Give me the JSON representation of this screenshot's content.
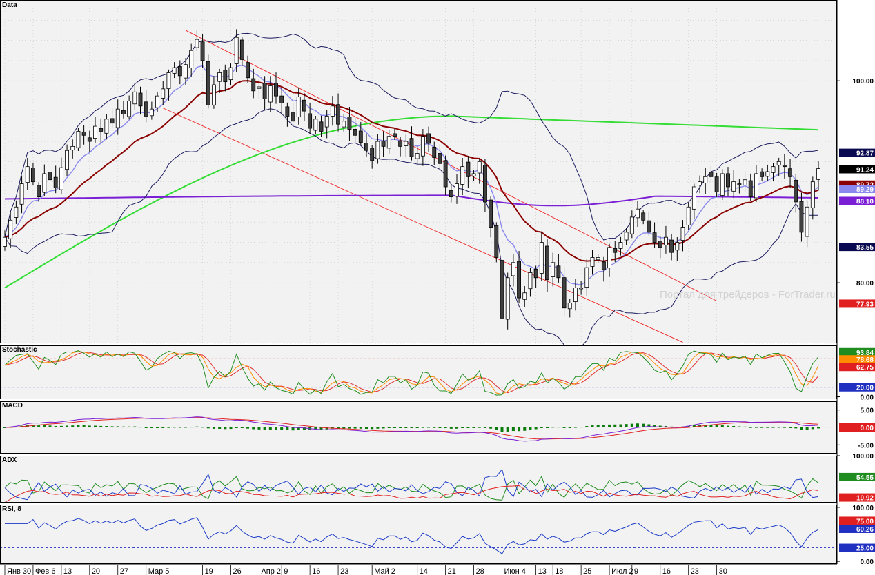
{
  "colors": {
    "panel_bg": "#f2f2f2",
    "axis_bg": "#ffffff",
    "candle_up": "#ffffff",
    "candle_down": "#404040",
    "candle_border": "#000000",
    "bollinger": "#1a1a5e",
    "ma_fast": "#8888ee",
    "ma_mid": "#8b0000",
    "ma_long": "#33dd33",
    "ma_purple": "#7b1fd6",
    "channel": "#ee2222",
    "grid": "#c8c8c8",
    "stoch_k": "#1e8c1e",
    "stoch_d": "#ff8c00",
    "stoch_slow": "#e03030",
    "macd": "#7b1fd6",
    "macd_signal": "#e02020",
    "macd_hist": "#0a7a0a",
    "adx": "#e02020",
    "plus_di": "#1e8c1e",
    "minus_di": "#1a3ac8",
    "rsi": "#1a3ac8",
    "level_red": "#e02020",
    "level_blue": "#2030c0"
  },
  "watermark": "Портал для трейдеров - ForTrader.ru",
  "chart_data": [
    {
      "type": "candlestick",
      "title": "Data",
      "ylim": [
        74,
        108
      ],
      "y_ticks": [
        80.0,
        100.0
      ],
      "y_tick_labels": [
        "80.00",
        "100.00"
      ],
      "grid": true,
      "price_labels": [
        {
          "value": 92.87,
          "text": "92.87",
          "color": "#0a0a50"
        },
        {
          "value": 91.24,
          "text": "91.24",
          "color": "#000000"
        },
        {
          "value": 89.72,
          "text": "89.72",
          "color": "#8b0000"
        },
        {
          "value": 89.29,
          "text": "89.29",
          "color": "#8888ee"
        },
        {
          "value": 88.1,
          "text": "88.10",
          "color": "#7b1fd6"
        },
        {
          "value": 83.55,
          "text": "83.55",
          "color": "#0a0a50"
        },
        {
          "value": 77.93,
          "text": "77.93",
          "color": "#e02020"
        }
      ],
      "closes": [
        84.5,
        86.2,
        87.5,
        89.8,
        91.5,
        90.0,
        88.5,
        90.8,
        90.2,
        89.4,
        91.4,
        93.1,
        93.5,
        95.0,
        94.6,
        94.0,
        95.5,
        95.0,
        96.2,
        95.8,
        97.2,
        96.7,
        98.0,
        98.9,
        97.5,
        96.5,
        97.2,
        98.5,
        99.2,
        100.8,
        101.3,
        100.5,
        101.6,
        103.0,
        104.1,
        102.0,
        97.6,
        99.6,
        100.8,
        99.9,
        101.3,
        104.3,
        102.1,
        100.3,
        99.0,
        99.4,
        98.2,
        99.5,
        98.5,
        97.8,
        96.5,
        96.0,
        98.4,
        97.0,
        95.3,
        96.2,
        95.0,
        96.5,
        97.5,
        95.7,
        96.0,
        95.2,
        94.6,
        93.9,
        93.1,
        92.1,
        94.0,
        93.5,
        94.5,
        94.5,
        93.5,
        94.0,
        92.5,
        92.8,
        94.5,
        93.8,
        92.4,
        91.8,
        89.5,
        88.5,
        89.8,
        91.5,
        90.5,
        90.8,
        92.0,
        88.0,
        85.5,
        82.5,
        76.5,
        80.5,
        82.0,
        78.5,
        79.0,
        81.0,
        80.5,
        84.0,
        80.3,
        82.0,
        80.5,
        77.5,
        78.0,
        79.5,
        79.5,
        81.5,
        82.5,
        82.5,
        81.3,
        83.5,
        83.0,
        84.0,
        85.0,
        86.5,
        87.3,
        86.2,
        85.0,
        84.0,
        83.5,
        84.5,
        83.0,
        84.0,
        85.5,
        87.5,
        89.5,
        90.0,
        90.5,
        90.5,
        89.0,
        90.8,
        89.5,
        90.0,
        89.8,
        90.2,
        88.5,
        90.8,
        90.5,
        91.0,
        91.5,
        92.0,
        91.5,
        90.5,
        88.0,
        85.0,
        87.5,
        90.0,
        91.3
      ]
    },
    {
      "type": "line",
      "title": "Stochastic",
      "ylim": [
        -5,
        108
      ],
      "tick_labels": [
        {
          "value": 93.84,
          "text": "93.84",
          "color": "#1e8c1e"
        },
        {
          "value": 78.68,
          "text": "78.68",
          "color": "#ff8c00"
        },
        {
          "value": 62.75,
          "text": "62.75",
          "color": "#e02020"
        },
        {
          "value": 20.0,
          "text": "20.00",
          "color": "#2030c0"
        },
        {
          "value": 0.0,
          "text": "0.00",
          "color": null
        }
      ],
      "levels": [
        80,
        20
      ]
    },
    {
      "type": "line",
      "title": "MACD",
      "ylim": [
        -7.5,
        7.5
      ],
      "tick_labels": [
        {
          "value": 5.0,
          "text": "5.00",
          "color": null
        },
        {
          "value": 0.0,
          "text": "0.00",
          "color": "#e02020"
        },
        {
          "value": -5.0,
          "text": "-5.00",
          "color": null
        }
      ]
    },
    {
      "type": "line",
      "title": "ADX",
      "ylim": [
        0,
        100
      ],
      "tick_labels": [
        {
          "value": 100.0,
          "text": "100.00",
          "color": null
        },
        {
          "value": 54.55,
          "text": "54.55",
          "color": "#1e8c1e"
        },
        {
          "value": 10.92,
          "text": "10.92",
          "color": "#e02020"
        }
      ]
    },
    {
      "type": "line",
      "title": "RSI, 8",
      "ylim": [
        -5,
        105
      ],
      "tick_labels": [
        {
          "value": 100.0,
          "text": "100.00",
          "color": null
        },
        {
          "value": 75.0,
          "text": "75.00",
          "color": "#e02020"
        },
        {
          "value": 60.26,
          "text": "60.26",
          "color": "#2030c0"
        },
        {
          "value": 25.0,
          "text": "25.00",
          "color": "#2030c0"
        },
        {
          "value": 0.0,
          "text": "0.00",
          "color": null
        }
      ],
      "levels": [
        75,
        25
      ]
    }
  ],
  "x_axis": {
    "labels": [
      {
        "text": "Янв 30",
        "index": 0
      },
      {
        "text": "Фев 6",
        "index": 5
      },
      {
        "text": "13",
        "index": 10
      },
      {
        "text": "20",
        "index": 15
      },
      {
        "text": "27",
        "index": 20
      },
      {
        "text": "Мар 5",
        "index": 25
      },
      {
        "text": "19",
        "index": 35
      },
      {
        "text": "26",
        "index": 40
      },
      {
        "text": "Апр 2",
        "index": 45
      },
      {
        "text": "9",
        "index": 49
      },
      {
        "text": "16",
        "index": 54
      },
      {
        "text": "23",
        "index": 59
      },
      {
        "text": "Май 2",
        "index": 65
      },
      {
        "text": "14",
        "index": 73
      },
      {
        "text": "21",
        "index": 78
      },
      {
        "text": "28",
        "index": 83
      },
      {
        "text": "Июн 4",
        "index": 88
      },
      {
        "text": "13",
        "index": 94
      },
      {
        "text": "18",
        "index": 97
      },
      {
        "text": "25",
        "index": 102
      },
      {
        "text": "Июл 2",
        "index": 107
      },
      {
        "text": "9",
        "index": 111
      },
      {
        "text": "16",
        "index": 116
      },
      {
        "text": "23",
        "index": 121
      },
      {
        "text": "30",
        "index": 126
      }
    ]
  }
}
